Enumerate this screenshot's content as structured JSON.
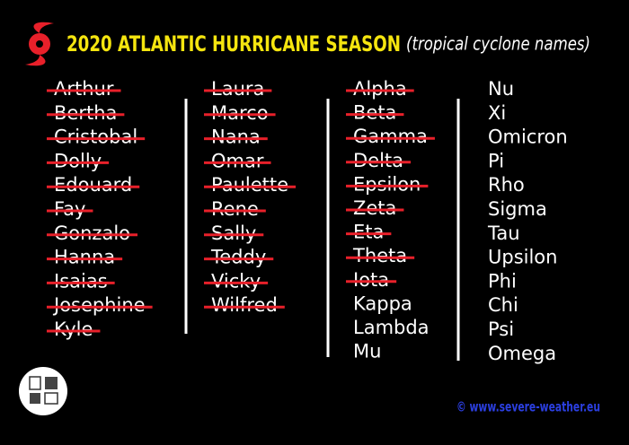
{
  "header": {
    "title": "2020 ATLANTIC HURRICANE SEASON",
    "subtitle": "(tropical cyclone names)"
  },
  "columns": [
    [
      {
        "name": "Arthur",
        "used": true
      },
      {
        "name": "Bertha",
        "used": true
      },
      {
        "name": "Cristobal",
        "used": true
      },
      {
        "name": "Dolly",
        "used": true
      },
      {
        "name": "Edouard",
        "used": true
      },
      {
        "name": "Fay",
        "used": true
      },
      {
        "name": "Gonzalo",
        "used": true
      },
      {
        "name": "Hanna",
        "used": true
      },
      {
        "name": "Isaias",
        "used": true
      },
      {
        "name": "Josephine",
        "used": true
      },
      {
        "name": "Kyle",
        "used": true
      }
    ],
    [
      {
        "name": "Laura",
        "used": true
      },
      {
        "name": "Marco",
        "used": true
      },
      {
        "name": "Nana",
        "used": true
      },
      {
        "name": "Omar",
        "used": true
      },
      {
        "name": "Paulette",
        "used": true
      },
      {
        "name": "Rene",
        "used": true
      },
      {
        "name": "Sally",
        "used": true
      },
      {
        "name": "Teddy",
        "used": true
      },
      {
        "name": "Vicky",
        "used": true
      },
      {
        "name": "Wilfred",
        "used": true
      }
    ],
    [
      {
        "name": "Alpha",
        "used": true
      },
      {
        "name": "Beta",
        "used": true
      },
      {
        "name": "Gamma",
        "used": true
      },
      {
        "name": "Delta",
        "used": true
      },
      {
        "name": "Epsilon",
        "used": true
      },
      {
        "name": "Zeta",
        "used": true
      },
      {
        "name": "Eta",
        "used": true
      },
      {
        "name": "Theta",
        "used": true
      },
      {
        "name": "Iota",
        "used": true
      },
      {
        "name": "Kappa",
        "used": false
      },
      {
        "name": "Lambda",
        "used": false
      },
      {
        "name": "Mu",
        "used": false
      }
    ],
    [
      {
        "name": "Nu",
        "used": false
      },
      {
        "name": "Xi",
        "used": false
      },
      {
        "name": "Omicron",
        "used": false
      },
      {
        "name": "Pi",
        "used": false
      },
      {
        "name": "Rho",
        "used": false
      },
      {
        "name": "Sigma",
        "used": false
      },
      {
        "name": "Tau",
        "used": false
      },
      {
        "name": "Upsilon",
        "used": false
      },
      {
        "name": "Phi",
        "used": false
      },
      {
        "name": "Chi",
        "used": false
      },
      {
        "name": "Psi",
        "used": false
      },
      {
        "name": "Omega",
        "used": false
      }
    ]
  ],
  "footer": {
    "credit": "© www.severe-weather.eu"
  }
}
